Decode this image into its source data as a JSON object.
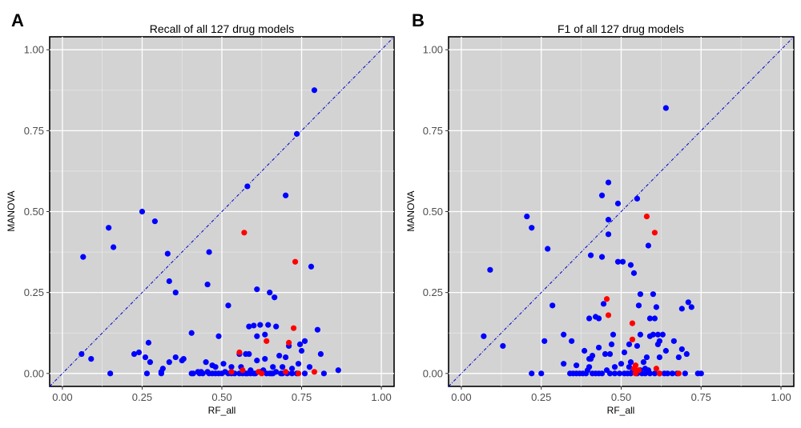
{
  "chart_data": [
    {
      "type": "scatter",
      "panel_label": "A",
      "title": "Recall of all 127 drug models",
      "xlabel": "RF_all",
      "ylabel": "MANOVA",
      "xlim": [
        -0.04,
        1.04
      ],
      "ylim": [
        -0.04,
        1.04
      ],
      "xticks": [
        "0.00",
        "0.25",
        "0.50",
        "0.75",
        "1.00"
      ],
      "yticks": [
        "0.00",
        "0.25",
        "0.50",
        "0.75",
        "1.00"
      ],
      "grid": true,
      "reference_line": "y = x",
      "colors": {
        "blue": "#0000ff",
        "red": "#ff0000",
        "diag": "#0000cd"
      },
      "series": [
        {
          "name": "blue",
          "color": "#0000ff",
          "points": [
            [
              0.79,
              0.875
            ],
            [
              0.735,
              0.74
            ],
            [
              0.58,
              0.578
            ],
            [
              0.7,
              0.55
            ],
            [
              0.25,
              0.5
            ],
            [
              0.29,
              0.47
            ],
            [
              0.145,
              0.45
            ],
            [
              0.16,
              0.39
            ],
            [
              0.46,
              0.375
            ],
            [
              0.33,
              0.37
            ],
            [
              0.065,
              0.36
            ],
            [
              0.78,
              0.33
            ],
            [
              0.335,
              0.285
            ],
            [
              0.455,
              0.275
            ],
            [
              0.355,
              0.25
            ],
            [
              0.61,
              0.26
            ],
            [
              0.65,
              0.25
            ],
            [
              0.665,
              0.235
            ],
            [
              0.52,
              0.21
            ],
            [
              0.62,
              0.15
            ],
            [
              0.645,
              0.15
            ],
            [
              0.6,
              0.148
            ],
            [
              0.585,
              0.145
            ],
            [
              0.67,
              0.145
            ],
            [
              0.405,
              0.125
            ],
            [
              0.49,
              0.115
            ],
            [
              0.61,
              0.115
            ],
            [
              0.635,
              0.12
            ],
            [
              0.76,
              0.1
            ],
            [
              0.8,
              0.135
            ],
            [
              0.27,
              0.095
            ],
            [
              0.745,
              0.09
            ],
            [
              0.71,
              0.085
            ],
            [
              0.75,
              0.07
            ],
            [
              0.225,
              0.06
            ],
            [
              0.24,
              0.065
            ],
            [
              0.26,
              0.05
            ],
            [
              0.355,
              0.05
            ],
            [
              0.38,
              0.045
            ],
            [
              0.375,
              0.04
            ],
            [
              0.09,
              0.045
            ],
            [
              0.06,
              0.06
            ],
            [
              0.275,
              0.035
            ],
            [
              0.335,
              0.035
            ],
            [
              0.45,
              0.035
            ],
            [
              0.47,
              0.025
            ],
            [
              0.555,
              0.06
            ],
            [
              0.575,
              0.06
            ],
            [
              0.585,
              0.06
            ],
            [
              0.61,
              0.04
            ],
            [
              0.635,
              0.045
            ],
            [
              0.68,
              0.055
            ],
            [
              0.7,
              0.05
            ],
            [
              0.81,
              0.06
            ],
            [
              0.41,
              0.0
            ],
            [
              0.425,
              0.005
            ],
            [
              0.435,
              0.005
            ],
            [
              0.44,
              0.0
            ],
            [
              0.46,
              0.0
            ],
            [
              0.47,
              0.0
            ],
            [
              0.48,
              0.0
            ],
            [
              0.49,
              0.0
            ],
            [
              0.5,
              0.0
            ],
            [
              0.51,
              0.005
            ],
            [
              0.52,
              0.0
            ],
            [
              0.53,
              0.0
            ],
            [
              0.54,
              0.0
            ],
            [
              0.555,
              0.0
            ],
            [
              0.575,
              0.0
            ],
            [
              0.58,
              0.0
            ],
            [
              0.59,
              0.0
            ],
            [
              0.6,
              0.0
            ],
            [
              0.62,
              0.005
            ],
            [
              0.64,
              0.0
            ],
            [
              0.65,
              0.0
            ],
            [
              0.66,
              0.0
            ],
            [
              0.67,
              0.005
            ],
            [
              0.69,
              0.0
            ],
            [
              0.72,
              0.0
            ],
            [
              0.735,
              0.0
            ],
            [
              0.76,
              0.0
            ],
            [
              0.82,
              0.0
            ],
            [
              0.865,
              0.01
            ],
            [
              0.15,
              0.0
            ],
            [
              0.265,
              0.0
            ],
            [
              0.31,
              0.0
            ],
            [
              0.315,
              0.015
            ],
            [
              0.405,
              0.0
            ],
            [
              0.48,
              0.02
            ],
            [
              0.505,
              0.03
            ],
            [
              0.53,
              0.02
            ],
            [
              0.56,
              0.02
            ],
            [
              0.59,
              0.01
            ],
            [
              0.63,
              0.01
            ],
            [
              0.66,
              0.02
            ],
            [
              0.69,
              0.02
            ],
            [
              0.72,
              0.015
            ],
            [
              0.74,
              0.03
            ],
            [
              0.775,
              0.02
            ],
            [
              0.31,
              0.005
            ],
            [
              0.43,
              0.0
            ],
            [
              0.455,
              0.005
            ],
            [
              0.565,
              0.0
            ],
            [
              0.605,
              0.0
            ],
            [
              0.655,
              0.0
            ],
            [
              0.685,
              0.0
            ],
            [
              0.705,
              0.0
            ]
          ]
        },
        {
          "name": "red",
          "color": "#ff0000",
          "points": [
            [
              0.57,
              0.435
            ],
            [
              0.73,
              0.345
            ],
            [
              0.725,
              0.14
            ],
            [
              0.64,
              0.1
            ],
            [
              0.71,
              0.095
            ],
            [
              0.555,
              0.065
            ],
            [
              0.53,
              0.005
            ],
            [
              0.565,
              0.01
            ],
            [
              0.615,
              0.005
            ],
            [
              0.625,
              0.0
            ],
            [
              0.7,
              0.005
            ],
            [
              0.74,
              0.0
            ],
            [
              0.79,
              0.005
            ]
          ]
        }
      ]
    },
    {
      "type": "scatter",
      "panel_label": "B",
      "title": "F1 of all 127 drug models",
      "xlabel": "RF_all",
      "ylabel": "MANOVA",
      "xlim": [
        -0.04,
        1.04
      ],
      "ylim": [
        -0.04,
        1.04
      ],
      "xticks": [
        "0.00",
        "0.25",
        "0.50",
        "0.75",
        "1.00"
      ],
      "yticks": [
        "0.00",
        "0.25",
        "0.50",
        "0.75",
        "1.00"
      ],
      "grid": true,
      "reference_line": "y = x",
      "colors": {
        "blue": "#0000ff",
        "red": "#ff0000",
        "diag": "#0000cd"
      },
      "series": [
        {
          "name": "blue",
          "color": "#0000ff",
          "points": [
            [
              0.64,
              0.82
            ],
            [
              0.46,
              0.59
            ],
            [
              0.44,
              0.55
            ],
            [
              0.55,
              0.54
            ],
            [
              0.49,
              0.525
            ],
            [
              0.205,
              0.485
            ],
            [
              0.46,
              0.475
            ],
            [
              0.22,
              0.45
            ],
            [
              0.46,
              0.43
            ],
            [
              0.585,
              0.395
            ],
            [
              0.27,
              0.385
            ],
            [
              0.405,
              0.365
            ],
            [
              0.44,
              0.36
            ],
            [
              0.49,
              0.345
            ],
            [
              0.505,
              0.345
            ],
            [
              0.53,
              0.335
            ],
            [
              0.09,
              0.32
            ],
            [
              0.54,
              0.31
            ],
            [
              0.56,
              0.245
            ],
            [
              0.6,
              0.245
            ],
            [
              0.71,
              0.22
            ],
            [
              0.72,
              0.205
            ],
            [
              0.69,
              0.2
            ],
            [
              0.285,
              0.21
            ],
            [
              0.445,
              0.215
            ],
            [
              0.555,
              0.21
            ],
            [
              0.61,
              0.205
            ],
            [
              0.4,
              0.17
            ],
            [
              0.43,
              0.17
            ],
            [
              0.42,
              0.175
            ],
            [
              0.59,
              0.17
            ],
            [
              0.605,
              0.17
            ],
            [
              0.615,
              0.12
            ],
            [
              0.6,
              0.12
            ],
            [
              0.62,
              0.1
            ],
            [
              0.63,
              0.12
            ],
            [
              0.665,
              0.1
            ],
            [
              0.59,
              0.115
            ],
            [
              0.56,
              0.12
            ],
            [
              0.475,
              0.12
            ],
            [
              0.47,
              0.09
            ],
            [
              0.525,
              0.09
            ],
            [
              0.55,
              0.085
            ],
            [
              0.07,
              0.115
            ],
            [
              0.13,
              0.085
            ],
            [
              0.32,
              0.12
            ],
            [
              0.345,
              0.1
            ],
            [
              0.43,
              0.08
            ],
            [
              0.45,
              0.06
            ],
            [
              0.385,
              0.07
            ],
            [
              0.41,
              0.055
            ],
            [
              0.4,
              0.045
            ],
            [
              0.405,
              0.045
            ],
            [
              0.465,
              0.06
            ],
            [
              0.51,
              0.065
            ],
            [
              0.53,
              0.035
            ],
            [
              0.57,
              0.035
            ],
            [
              0.58,
              0.05
            ],
            [
              0.615,
              0.09
            ],
            [
              0.62,
              0.05
            ],
            [
              0.64,
              0.07
            ],
            [
              0.68,
              0.05
            ],
            [
              0.69,
              0.075
            ],
            [
              0.705,
              0.06
            ],
            [
              0.26,
              0.1
            ],
            [
              0.32,
              0.03
            ],
            [
              0.48,
              0.02
            ],
            [
              0.5,
              0.03
            ],
            [
              0.525,
              0.02
            ],
            [
              0.36,
              0.025
            ],
            [
              0.4,
              0.02
            ],
            [
              0.56,
              0.01
            ],
            [
              0.585,
              0.01
            ],
            [
              0.22,
              0.0
            ],
            [
              0.25,
              0.0
            ],
            [
              0.34,
              0.0
            ],
            [
              0.35,
              0.0
            ],
            [
              0.36,
              0.0
            ],
            [
              0.37,
              0.0
            ],
            [
              0.38,
              0.0
            ],
            [
              0.39,
              0.0
            ],
            [
              0.41,
              0.0
            ],
            [
              0.42,
              0.0
            ],
            [
              0.43,
              0.0
            ],
            [
              0.44,
              0.0
            ],
            [
              0.465,
              0.0
            ],
            [
              0.48,
              0.0
            ],
            [
              0.495,
              0.0
            ],
            [
              0.51,
              0.0
            ],
            [
              0.52,
              0.0
            ],
            [
              0.53,
              0.0
            ],
            [
              0.55,
              0.0
            ],
            [
              0.565,
              0.0
            ],
            [
              0.575,
              0.0
            ],
            [
              0.59,
              0.0
            ],
            [
              0.605,
              0.0
            ],
            [
              0.62,
              0.0
            ],
            [
              0.635,
              0.0
            ],
            [
              0.645,
              0.0
            ],
            [
              0.66,
              0.0
            ],
            [
              0.675,
              0.0
            ],
            [
              0.7,
              0.0
            ],
            [
              0.74,
              0.0
            ],
            [
              0.75,
              0.0
            ],
            [
              0.395,
              0.01
            ],
            [
              0.455,
              0.01
            ],
            [
              0.535,
              0.005
            ],
            [
              0.575,
              0.015
            ]
          ]
        },
        {
          "name": "red",
          "color": "#ff0000",
          "points": [
            [
              0.58,
              0.485
            ],
            [
              0.605,
              0.435
            ],
            [
              0.455,
              0.23
            ],
            [
              0.46,
              0.18
            ],
            [
              0.535,
              0.155
            ],
            [
              0.535,
              0.105
            ],
            [
              0.545,
              0.025
            ],
            [
              0.54,
              0.015
            ],
            [
              0.555,
              0.01
            ],
            [
              0.545,
              0.0
            ],
            [
              0.61,
              0.015
            ],
            [
              0.62,
              0.0
            ],
            [
              0.68,
              0.0
            ]
          ]
        }
      ]
    }
  ]
}
